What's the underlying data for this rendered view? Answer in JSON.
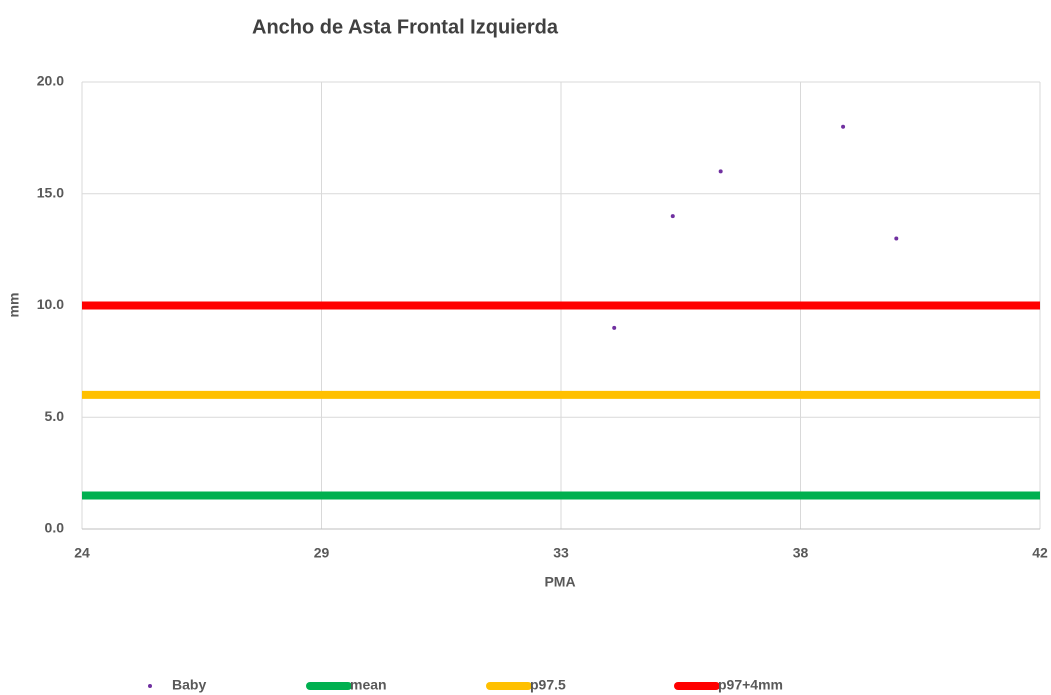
{
  "chart_data": {
    "type": "scatter",
    "title": "Ancho de Asta Frontal Izquierda",
    "x_label": "PMA",
    "y_label": "mm",
    "xlim": [
      24,
      42
    ],
    "xticks": [
      24,
      {
        "value": 28.5,
        "label": "29"
      },
      33,
      {
        "value": 37.5,
        "label": "38"
      },
      42
    ],
    "ylim": [
      0,
      20
    ],
    "yticks": [
      {
        "value": 0,
        "label": "0.0"
      },
      {
        "value": 5,
        "label": "5.0"
      },
      {
        "value": 10,
        "label": "10.0"
      },
      {
        "value": 15,
        "label": "15.0"
      },
      {
        "value": 20,
        "label": "20.0"
      }
    ],
    "grid": true,
    "legend": "bottom",
    "series": [
      {
        "name": "Baby",
        "color": "#7030a0",
        "mode": "markers",
        "x": [
          34.0,
          35.1,
          36.0,
          38.3,
          39.3
        ],
        "values": [
          9,
          14,
          16,
          18,
          13
        ]
      },
      {
        "name": "mean",
        "color": "#00b050",
        "mode": "lines",
        "x": [
          24,
          42
        ],
        "values": [
          1.5,
          1.5
        ]
      },
      {
        "name": "p97.5",
        "color": "#ffc000",
        "mode": "lines",
        "x": [
          24,
          42
        ],
        "values": [
          6,
          6
        ]
      },
      {
        "name": "p97+4mm",
        "color": "#ff0000",
        "mode": "lines",
        "x": [
          24,
          42
        ],
        "values": [
          10,
          10
        ]
      }
    ]
  }
}
